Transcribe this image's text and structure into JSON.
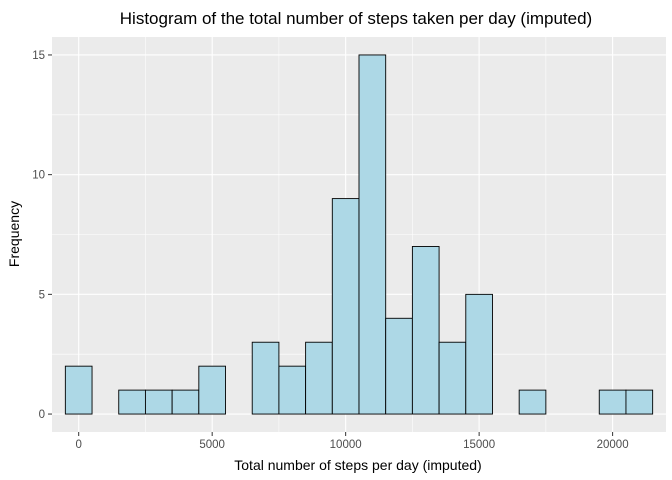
{
  "chart_data": {
    "type": "bar",
    "title": "Histogram of the total number of steps taken per day (imputed)",
    "xlabel": "Total number of steps per day (imputed)",
    "ylabel": "Frequency",
    "bin_width": 1000,
    "bins": [
      {
        "center": 0,
        "count": 2
      },
      {
        "center": 1000,
        "count": 0
      },
      {
        "center": 2000,
        "count": 1
      },
      {
        "center": 3000,
        "count": 1
      },
      {
        "center": 4000,
        "count": 1
      },
      {
        "center": 5000,
        "count": 2
      },
      {
        "center": 6000,
        "count": 0
      },
      {
        "center": 7000,
        "count": 3
      },
      {
        "center": 8000,
        "count": 2
      },
      {
        "center": 9000,
        "count": 3
      },
      {
        "center": 10000,
        "count": 9
      },
      {
        "center": 11000,
        "count": 15
      },
      {
        "center": 12000,
        "count": 4
      },
      {
        "center": 13000,
        "count": 7
      },
      {
        "center": 14000,
        "count": 3
      },
      {
        "center": 15000,
        "count": 5
      },
      {
        "center": 16000,
        "count": 0
      },
      {
        "center": 17000,
        "count": 1
      },
      {
        "center": 18000,
        "count": 0
      },
      {
        "center": 19000,
        "count": 0
      },
      {
        "center": 20000,
        "count": 1
      },
      {
        "center": 21000,
        "count": 1
      }
    ],
    "xlim": [
      -1000,
      22000
    ],
    "ylim": [
      -0.75,
      15.75
    ],
    "x_ticks": [
      0,
      5000,
      10000,
      15000,
      20000
    ],
    "x_tick_labels": [
      "0",
      "5000",
      "10000",
      "15000",
      "20000"
    ],
    "y_ticks": [
      0,
      5,
      10,
      15
    ],
    "y_tick_labels": [
      "0",
      "5",
      "10",
      "15"
    ],
    "grid": true,
    "colors": {
      "panel_background": "#ebebeb",
      "grid_major": "#ffffff",
      "bar_fill": "#add8e6",
      "bar_outline": "#000000",
      "tick_text": "#4d4d4d"
    }
  }
}
